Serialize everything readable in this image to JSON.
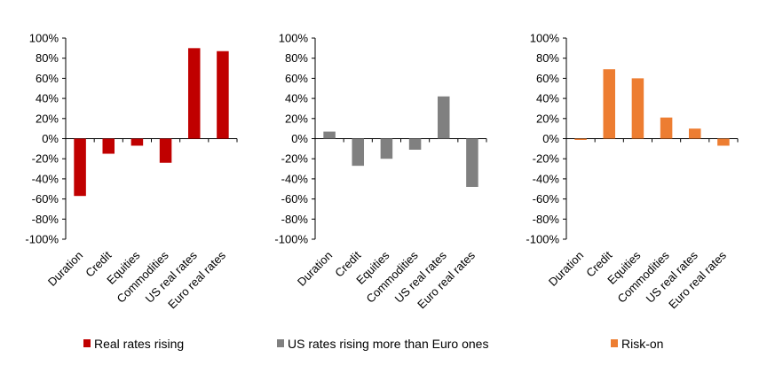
{
  "chart_data": [
    {
      "type": "bar",
      "title": "",
      "xlabel": "",
      "ylabel": "",
      "ylim": [
        -100,
        100
      ],
      "y_ticks": [
        "100%",
        "80%",
        "60%",
        "40%",
        "20%",
        "0%",
        "-20%",
        "-40%",
        "-60%",
        "-80%",
        "-100%"
      ],
      "categories": [
        "Duration",
        "Credit",
        "Equities",
        "Commodities",
        "US real rates",
        "Euro real rates"
      ],
      "series": [
        {
          "name": "Real rates rising",
          "color": "#C00000",
          "values": [
            -57,
            -15,
            -7,
            -24,
            90,
            87
          ]
        }
      ]
    },
    {
      "type": "bar",
      "title": "",
      "xlabel": "",
      "ylabel": "",
      "ylim": [
        -100,
        100
      ],
      "y_ticks": [
        "100%",
        "80%",
        "60%",
        "40%",
        "20%",
        "0%",
        "-20%",
        "-40%",
        "-60%",
        "-80%",
        "-100%"
      ],
      "categories": [
        "Duration",
        "Credit",
        "Equities",
        "Commodities",
        "US real rates",
        "Euro real rates"
      ],
      "series": [
        {
          "name": "US rates rising more than Euro ones",
          "color": "#808080",
          "values": [
            7,
            -27,
            -20,
            -11,
            42,
            -48
          ]
        }
      ]
    },
    {
      "type": "bar",
      "title": "",
      "xlabel": "",
      "ylabel": "",
      "ylim": [
        -100,
        100
      ],
      "y_ticks": [
        "100%",
        "80%",
        "60%",
        "40%",
        "20%",
        "0%",
        "-20%",
        "-40%",
        "-60%",
        "-80%",
        "-100%"
      ],
      "categories": [
        "Duration",
        "Credit",
        "Equities",
        "Commodities",
        "US real rates",
        "Euro real rates"
      ],
      "series": [
        {
          "name": "Risk-on",
          "color": "#ED7D31",
          "values": [
            -1,
            69,
            60,
            21,
            10,
            -7
          ]
        }
      ]
    }
  ]
}
